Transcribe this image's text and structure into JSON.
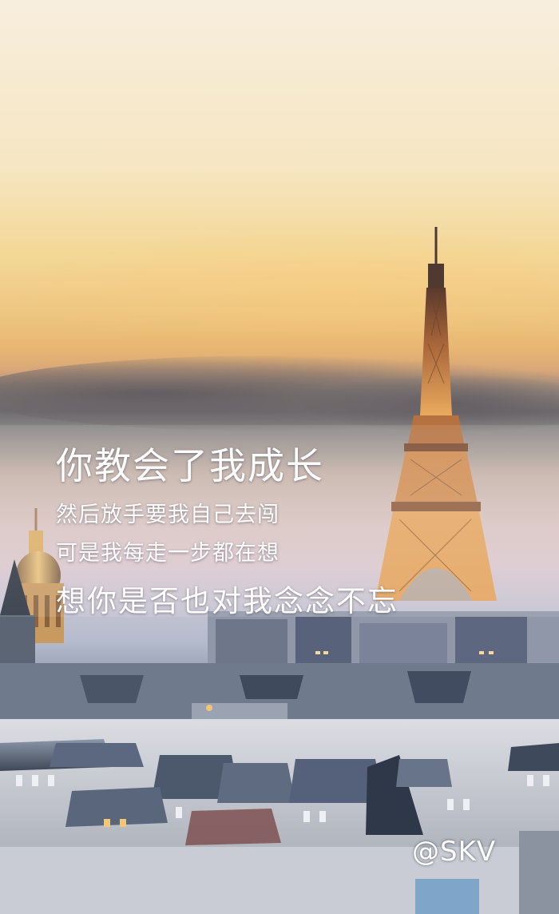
{
  "poem": {
    "line1": "你教会了我成长",
    "line2": "然后放手要我自己去闯",
    "line3": "可是我每走一步都在想",
    "line4": "想你是否也对我念念不忘"
  },
  "watermark": "@SKV",
  "colors": {
    "sky_top": "#f7eedd",
    "sunset": "#eec782",
    "cloud": "#6f6c6f",
    "dusk": "#d9c6cd",
    "tower_glow": "#e7a85a",
    "rooftops": "#5a6678"
  },
  "scene": {
    "landmark": "Eiffel Tower",
    "secondary_landmark": "dome"
  }
}
